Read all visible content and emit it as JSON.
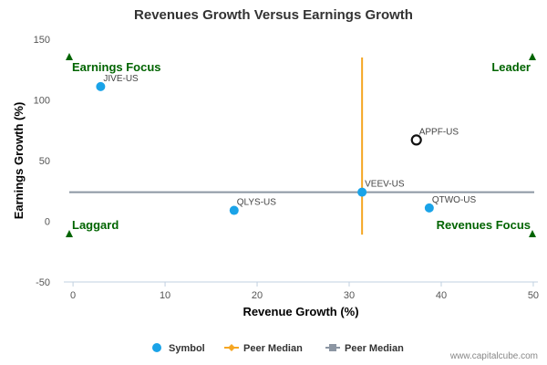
{
  "chart_data": {
    "type": "scatter",
    "title": "Revenues Growth Versus Earnings Growth",
    "xlabel": "Revenue Growth (%)",
    "ylabel": "Earnings Growth (%)",
    "xlim": [
      -1,
      50.5
    ],
    "ylim": [
      -50,
      150
    ],
    "xticks": [
      0,
      10,
      20,
      30,
      40,
      50
    ],
    "yticks": [
      -50,
      0,
      50,
      100,
      150
    ],
    "grid": false,
    "points": [
      {
        "label": "JIVE-US",
        "x": 3.0,
        "y": 111
      },
      {
        "label": "QLYS-US",
        "x": 17.5,
        "y": 9
      },
      {
        "label": "VEEV-US",
        "x": 31.4,
        "y": 24
      },
      {
        "label": "QTWO-US",
        "x": 38.7,
        "y": 11
      },
      {
        "label": "APPF-US",
        "x": 37.3,
        "y": 67,
        "highlight": true
      }
    ],
    "peer_median_x": 31.4,
    "peer_median_y": 24,
    "vertical_median_range": [
      -11,
      135
    ],
    "quadrants": {
      "top_left": "Earnings Focus",
      "top_right": "Leader",
      "bottom_left": "Laggard",
      "bottom_right": "Revenues Focus"
    },
    "legend": {
      "position": "bottom-center",
      "items": [
        {
          "label": "Symbol",
          "marker": "circle",
          "color": "#1aa3e8"
        },
        {
          "label": "Peer Median",
          "marker": "diamond-line",
          "color": "#f5a623"
        },
        {
          "label": "Peer Median",
          "marker": "square-line",
          "color": "#8c96a3"
        }
      ]
    },
    "colors": {
      "symbol": "#1aa3e8",
      "highlight_stroke": "#111111",
      "median_vertical": "#f5a623",
      "median_horizontal": "#8c96a3",
      "quadrant_text": "#006400",
      "triangle": "#006400"
    }
  },
  "credit": "www.capitalcube.com"
}
